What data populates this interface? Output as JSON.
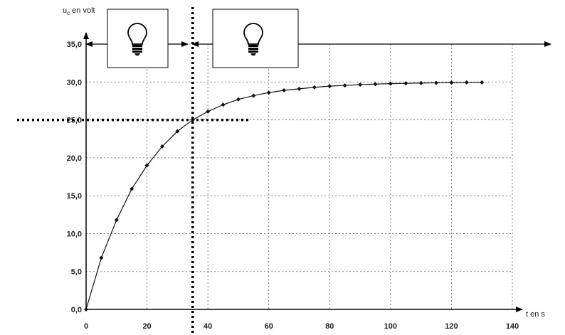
{
  "chart_data": {
    "type": "line",
    "title": "",
    "ylabel_main": "u",
    "ylabel_sub": "c",
    "ylabel_rest": " en volt",
    "xlabel": "t en s",
    "xlim": [
      0,
      140
    ],
    "ylim": [
      0,
      35
    ],
    "x_ticks": [
      0,
      20,
      40,
      60,
      80,
      100,
      120,
      140
    ],
    "x_tick_labels": [
      "0",
      "20",
      "40",
      "60",
      "80",
      "100",
      "120",
      "140"
    ],
    "y_ticks": [
      0,
      5,
      10,
      15,
      20,
      25,
      30,
      35
    ],
    "y_tick_labels": [
      "0,0",
      "5,0",
      "10,0",
      "15,0",
      "20,0",
      "25,0",
      "30,0",
      "35,0"
    ],
    "grid": true,
    "series": [
      {
        "x": [
          0,
          5,
          10,
          15,
          20,
          25,
          30,
          35,
          40,
          45,
          50,
          55,
          60,
          65,
          70,
          75,
          80,
          85,
          90,
          95,
          100,
          105,
          110,
          115,
          120,
          125,
          130
        ],
        "y": [
          0,
          6.8,
          11.8,
          15.9,
          19.0,
          21.5,
          23.5,
          25.0,
          26.1,
          27.0,
          27.7,
          28.2,
          28.6,
          28.9,
          29.1,
          29.3,
          29.45,
          29.55,
          29.65,
          29.72,
          29.78,
          29.82,
          29.86,
          29.89,
          29.92,
          29.94,
          29.95
        ],
        "color": "#111111"
      }
    ],
    "annotations": {
      "vertical_dotted_x": 35,
      "horizontal_dotted_y": 25,
      "bulb_icons": [
        "lightbulb-icon",
        "lightbulb-icon"
      ]
    }
  }
}
